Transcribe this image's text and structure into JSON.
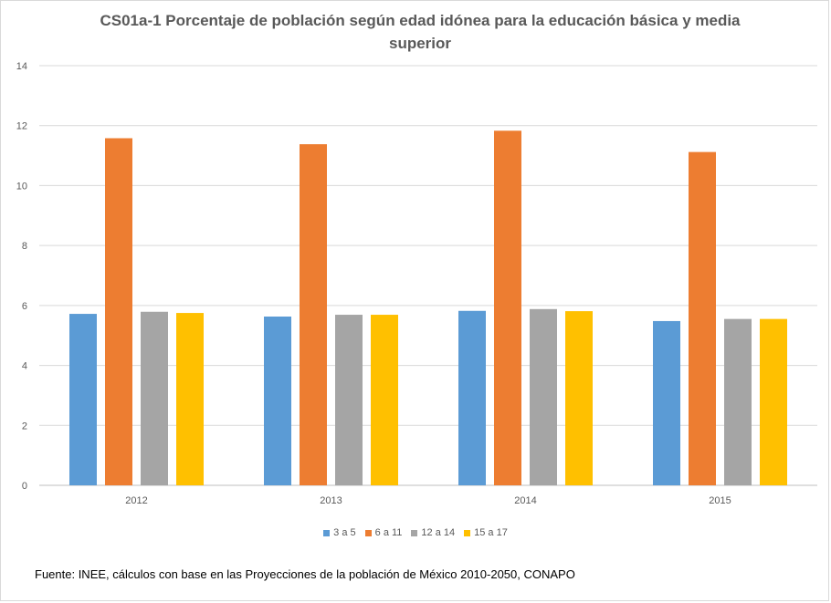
{
  "chart_data": {
    "type": "bar",
    "title": "CS01a-1 Porcentaje de población según edad idónea para la educación básica y media superior",
    "categories": [
      "2012",
      "2013",
      "2014",
      "2015"
    ],
    "series": [
      {
        "name": "3 a 5",
        "color": "#5b9bd5",
        "values": [
          5.72,
          5.63,
          5.82,
          5.48
        ]
      },
      {
        "name": "6 a 11",
        "color": "#ed7d31",
        "values": [
          11.58,
          11.38,
          11.83,
          11.12
        ]
      },
      {
        "name": "12 a 14",
        "color": "#a5a5a5",
        "values": [
          5.79,
          5.69,
          5.88,
          5.55
        ]
      },
      {
        "name": "15 a 17",
        "color": "#ffc000",
        "values": [
          5.75,
          5.69,
          5.81,
          5.55
        ]
      }
    ],
    "ylim": [
      0,
      14
    ],
    "yticks": [
      0,
      2,
      4,
      6,
      8,
      10,
      12,
      14
    ],
    "grid": true,
    "legend": "bottom"
  },
  "source_note": "Fuente: INEE, cálculos con base en las Proyecciones de la población de México 2010-2050,  CONAPO"
}
